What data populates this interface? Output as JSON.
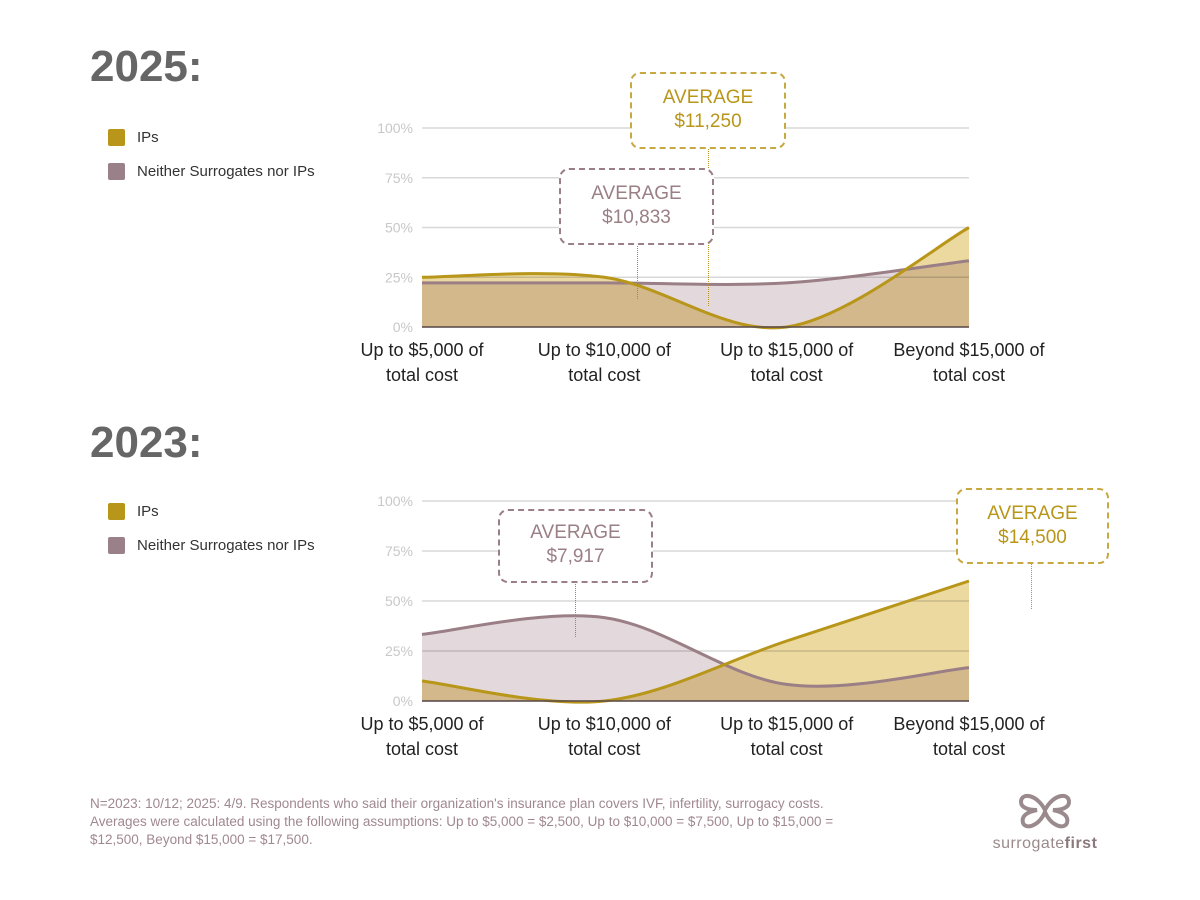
{
  "colors": {
    "ips": "#b8961a",
    "ips_fill": "#ecd9a0",
    "neither": "#9a7f86",
    "neither_fill": "#e3d9dc",
    "grid": "#d8d8d8",
    "tick": "#c8c8c8"
  },
  "legend": {
    "ips": "IPs",
    "neither": "Neither Surrogates nor IPs"
  },
  "chart_data": [
    {
      "type": "area",
      "title": "2025:",
      "categories": [
        [
          "Up to $5,000 of",
          "total cost"
        ],
        [
          "Up to $10,000 of",
          "total cost"
        ],
        [
          "Up to $15,000 of",
          "total cost"
        ],
        [
          "Beyond $15,000 of",
          "total cost"
        ]
      ],
      "yticks": [
        "0%",
        "25%",
        "50%",
        "75%",
        "100%"
      ],
      "ylim": [
        0,
        100
      ],
      "series": [
        {
          "name": "IPs",
          "values": [
            25,
            25,
            0,
            50
          ]
        },
        {
          "name": "Neither Surrogates nor IPs",
          "values": [
            22.2,
            22.2,
            22.2,
            33.3
          ]
        }
      ],
      "annotations": {
        "ips": {
          "label": "AVERAGE",
          "value": "$11,250"
        },
        "neither": {
          "label": "AVERAGE",
          "value": "$10,833"
        }
      }
    },
    {
      "type": "area",
      "title": "2023:",
      "categories": [
        [
          "Up to $5,000 of",
          "total cost"
        ],
        [
          "Up to $10,000 of",
          "total cost"
        ],
        [
          "Up to $15,000 of",
          "total cost"
        ],
        [
          "Beyond $15,000 of",
          "total cost"
        ]
      ],
      "yticks": [
        "0%",
        "25%",
        "50%",
        "75%",
        "100%"
      ],
      "ylim": [
        0,
        100
      ],
      "series": [
        {
          "name": "IPs",
          "values": [
            10,
            0,
            30,
            60
          ]
        },
        {
          "name": "Neither Surrogates nor IPs",
          "values": [
            33.3,
            41.7,
            8.3,
            16.7
          ]
        }
      ],
      "annotations": {
        "ips": {
          "label": "AVERAGE",
          "value": "$14,500"
        },
        "neither": {
          "label": "AVERAGE",
          "value": "$7,917"
        }
      }
    }
  ],
  "footnote": [
    "N=2023: 10/12; 2025: 4/9.  Respondents who said their organization's insurance plan covers  IVF, infertility, surrogacy costs.",
    "Averages were calculated using the following assumptions: Up to $5,000  = $2,500, Up to $10,000 = $7,500,  Up to $15,000 =",
    "$12,500, Beyond $15,000 = $17,500."
  ],
  "logo": {
    "text_light": "surrogate",
    "text_bold": "first"
  }
}
